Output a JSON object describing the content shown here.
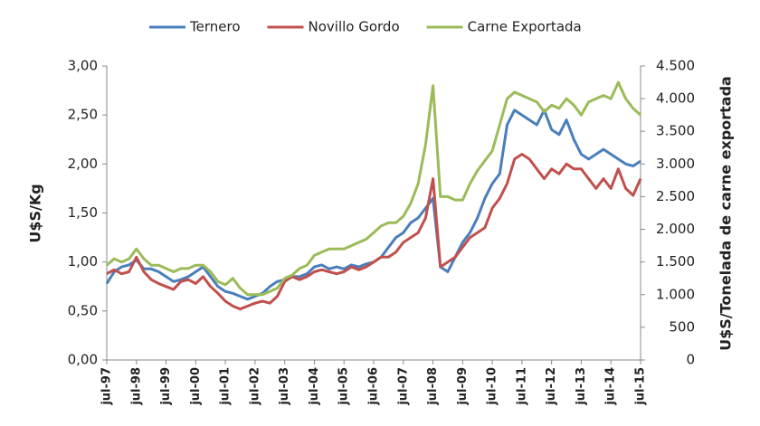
{
  "chart_data": {
    "type": "line",
    "y_label": "U$S/Kg",
    "y2_label": "U$S/Tonelada de carne exportada",
    "legend": "top",
    "categories": [
      "jul-97",
      null,
      null,
      null,
      "jul-98",
      null,
      null,
      null,
      "jul-99",
      null,
      null,
      null,
      "jul-00",
      null,
      null,
      null,
      "jul-01",
      null,
      null,
      null,
      "jul-02",
      null,
      null,
      null,
      "jul-03",
      null,
      null,
      null,
      "jul-04",
      null,
      null,
      null,
      "jul-05",
      null,
      null,
      null,
      "jul-06",
      null,
      null,
      null,
      "jul-07",
      null,
      null,
      null,
      "jul-08",
      null,
      null,
      null,
      "jul-09",
      null,
      null,
      null,
      "jul-10",
      null,
      null,
      null,
      "jul-11",
      null,
      null,
      null,
      "jul-12",
      null,
      null,
      null,
      "jul-13",
      null,
      null,
      null,
      "jul-14",
      null,
      null,
      null,
      "jul-15"
    ],
    "ylim": [
      0,
      3
    ],
    "yticks": [
      {
        "value": 0,
        "label": "0,00"
      },
      {
        "value": 0.5,
        "label": "0,50"
      },
      {
        "value": 1,
        "label": "1,00"
      },
      {
        "value": 1.5,
        "label": "1,50"
      },
      {
        "value": 2,
        "label": "2,00"
      },
      {
        "value": 2.5,
        "label": "2,50"
      },
      {
        "value": 3,
        "label": "3,00"
      }
    ],
    "y2lim": [
      0,
      4500
    ],
    "y2ticks": [
      0,
      500,
      {
        "value": 1000,
        "label": "1.000"
      },
      {
        "value": 1500,
        "label": "1.500"
      },
      {
        "value": 2000,
        "label": "2.000"
      },
      {
        "value": 2500,
        "label": "2.500"
      },
      {
        "value": 3000,
        "label": "3.000"
      },
      {
        "value": 3500,
        "label": "3.500"
      },
      {
        "value": 4000,
        "label": "4.000"
      },
      {
        "value": 4500,
        "label": "4.500"
      }
    ],
    "series": [
      {
        "name": "Ternero",
        "color": "#4a7ebb",
        "values": [
          0.78,
          0.9,
          0.95,
          0.97,
          1.02,
          0.93,
          0.93,
          0.9,
          0.85,
          0.8,
          0.82,
          0.85,
          0.9,
          0.95,
          0.85,
          0.75,
          0.7,
          0.68,
          0.65,
          0.62,
          0.65,
          0.68,
          0.75,
          0.8,
          0.82,
          0.85,
          0.85,
          0.88,
          0.95,
          0.97,
          0.93,
          0.95,
          0.93,
          0.97,
          0.95,
          0.98,
          1.0,
          1.05,
          1.15,
          1.25,
          1.3,
          1.4,
          1.45,
          1.55,
          1.65,
          0.95,
          0.9,
          1.05,
          1.2,
          1.3,
          1.45,
          1.65,
          1.8,
          1.9,
          2.4,
          2.55,
          2.5,
          2.45,
          2.4,
          2.55,
          2.35,
          2.3,
          2.45,
          2.25,
          2.1,
          2.05,
          2.1,
          2.15,
          2.1,
          2.05,
          2.0,
          1.98,
          2.03
        ]
      },
      {
        "name": "Novillo Gordo",
        "color": "#c0504d",
        "values": [
          0.88,
          0.92,
          0.88,
          0.9,
          1.05,
          0.9,
          0.82,
          0.78,
          0.75,
          0.72,
          0.8,
          0.82,
          0.78,
          0.85,
          0.75,
          0.68,
          0.6,
          0.55,
          0.52,
          0.55,
          0.58,
          0.6,
          0.58,
          0.65,
          0.8,
          0.85,
          0.82,
          0.85,
          0.9,
          0.92,
          0.9,
          0.88,
          0.9,
          0.95,
          0.92,
          0.95,
          1.0,
          1.05,
          1.05,
          1.1,
          1.2,
          1.25,
          1.3,
          1.45,
          1.85,
          0.95,
          1.0,
          1.05,
          1.15,
          1.25,
          1.3,
          1.35,
          1.55,
          1.65,
          1.8,
          2.05,
          2.1,
          2.05,
          1.95,
          1.85,
          1.95,
          1.9,
          2.0,
          1.95,
          1.95,
          1.85,
          1.75,
          1.85,
          1.75,
          1.95,
          1.75,
          1.68,
          1.85
        ]
      },
      {
        "name": "Carne Exportada",
        "color": "#9bbb59",
        "axis": "y2",
        "values": [
          1450,
          1550,
          1500,
          1550,
          1700,
          1550,
          1450,
          1450,
          1400,
          1350,
          1400,
          1400,
          1450,
          1450,
          1350,
          1200,
          1150,
          1250,
          1100,
          1000,
          1000,
          1000,
          1050,
          1100,
          1250,
          1300,
          1400,
          1450,
          1600,
          1650,
          1700,
          1700,
          1700,
          1750,
          1800,
          1850,
          1950,
          2050,
          2100,
          2100,
          2200,
          2400,
          2700,
          3300,
          4200,
          2500,
          2500,
          2450,
          2450,
          2700,
          2900,
          3050,
          3200,
          3600,
          4000,
          4100,
          4050,
          4000,
          3950,
          3800,
          3900,
          3850,
          4000,
          3900,
          3750,
          3950,
          4000,
          4050,
          4000,
          4250,
          4000,
          3850,
          3750
        ]
      }
    ]
  }
}
